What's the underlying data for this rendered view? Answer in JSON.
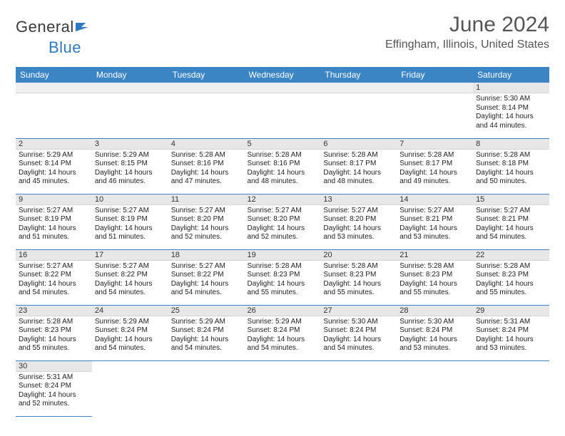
{
  "logo": {
    "prefix": "General",
    "suffix": "Blue"
  },
  "title": "June 2024",
  "location": "Effingham, Illinois, United States",
  "weekdays": [
    "Sunday",
    "Monday",
    "Tuesday",
    "Wednesday",
    "Thursday",
    "Friday",
    "Saturday"
  ],
  "colors": {
    "header_bg": "#3b85c5",
    "header_fg": "#ffffff",
    "daynum_bg": "#e7e7e7",
    "row_border": "#3b85c5"
  },
  "weeks": [
    [
      {
        "n": "",
        "sr": "",
        "ss": "",
        "dl": ""
      },
      {
        "n": "",
        "sr": "",
        "ss": "",
        "dl": ""
      },
      {
        "n": "",
        "sr": "",
        "ss": "",
        "dl": ""
      },
      {
        "n": "",
        "sr": "",
        "ss": "",
        "dl": ""
      },
      {
        "n": "",
        "sr": "",
        "ss": "",
        "dl": ""
      },
      {
        "n": "",
        "sr": "",
        "ss": "",
        "dl": ""
      },
      {
        "n": "1",
        "sr": "Sunrise: 5:30 AM",
        "ss": "Sunset: 8:14 PM",
        "dl": "Daylight: 14 hours and 44 minutes."
      }
    ],
    [
      {
        "n": "2",
        "sr": "Sunrise: 5:29 AM",
        "ss": "Sunset: 8:14 PM",
        "dl": "Daylight: 14 hours and 45 minutes."
      },
      {
        "n": "3",
        "sr": "Sunrise: 5:29 AM",
        "ss": "Sunset: 8:15 PM",
        "dl": "Daylight: 14 hours and 46 minutes."
      },
      {
        "n": "4",
        "sr": "Sunrise: 5:28 AM",
        "ss": "Sunset: 8:16 PM",
        "dl": "Daylight: 14 hours and 47 minutes."
      },
      {
        "n": "5",
        "sr": "Sunrise: 5:28 AM",
        "ss": "Sunset: 8:16 PM",
        "dl": "Daylight: 14 hours and 48 minutes."
      },
      {
        "n": "6",
        "sr": "Sunrise: 5:28 AM",
        "ss": "Sunset: 8:17 PM",
        "dl": "Daylight: 14 hours and 48 minutes."
      },
      {
        "n": "7",
        "sr": "Sunrise: 5:28 AM",
        "ss": "Sunset: 8:17 PM",
        "dl": "Daylight: 14 hours and 49 minutes."
      },
      {
        "n": "8",
        "sr": "Sunrise: 5:28 AM",
        "ss": "Sunset: 8:18 PM",
        "dl": "Daylight: 14 hours and 50 minutes."
      }
    ],
    [
      {
        "n": "9",
        "sr": "Sunrise: 5:27 AM",
        "ss": "Sunset: 8:19 PM",
        "dl": "Daylight: 14 hours and 51 minutes."
      },
      {
        "n": "10",
        "sr": "Sunrise: 5:27 AM",
        "ss": "Sunset: 8:19 PM",
        "dl": "Daylight: 14 hours and 51 minutes."
      },
      {
        "n": "11",
        "sr": "Sunrise: 5:27 AM",
        "ss": "Sunset: 8:20 PM",
        "dl": "Daylight: 14 hours and 52 minutes."
      },
      {
        "n": "12",
        "sr": "Sunrise: 5:27 AM",
        "ss": "Sunset: 8:20 PM",
        "dl": "Daylight: 14 hours and 52 minutes."
      },
      {
        "n": "13",
        "sr": "Sunrise: 5:27 AM",
        "ss": "Sunset: 8:20 PM",
        "dl": "Daylight: 14 hours and 53 minutes."
      },
      {
        "n": "14",
        "sr": "Sunrise: 5:27 AM",
        "ss": "Sunset: 8:21 PM",
        "dl": "Daylight: 14 hours and 53 minutes."
      },
      {
        "n": "15",
        "sr": "Sunrise: 5:27 AM",
        "ss": "Sunset: 8:21 PM",
        "dl": "Daylight: 14 hours and 54 minutes."
      }
    ],
    [
      {
        "n": "16",
        "sr": "Sunrise: 5:27 AM",
        "ss": "Sunset: 8:22 PM",
        "dl": "Daylight: 14 hours and 54 minutes."
      },
      {
        "n": "17",
        "sr": "Sunrise: 5:27 AM",
        "ss": "Sunset: 8:22 PM",
        "dl": "Daylight: 14 hours and 54 minutes."
      },
      {
        "n": "18",
        "sr": "Sunrise: 5:27 AM",
        "ss": "Sunset: 8:22 PM",
        "dl": "Daylight: 14 hours and 54 minutes."
      },
      {
        "n": "19",
        "sr": "Sunrise: 5:28 AM",
        "ss": "Sunset: 8:23 PM",
        "dl": "Daylight: 14 hours and 55 minutes."
      },
      {
        "n": "20",
        "sr": "Sunrise: 5:28 AM",
        "ss": "Sunset: 8:23 PM",
        "dl": "Daylight: 14 hours and 55 minutes."
      },
      {
        "n": "21",
        "sr": "Sunrise: 5:28 AM",
        "ss": "Sunset: 8:23 PM",
        "dl": "Daylight: 14 hours and 55 minutes."
      },
      {
        "n": "22",
        "sr": "Sunrise: 5:28 AM",
        "ss": "Sunset: 8:23 PM",
        "dl": "Daylight: 14 hours and 55 minutes."
      }
    ],
    [
      {
        "n": "23",
        "sr": "Sunrise: 5:28 AM",
        "ss": "Sunset: 8:23 PM",
        "dl": "Daylight: 14 hours and 55 minutes."
      },
      {
        "n": "24",
        "sr": "Sunrise: 5:29 AM",
        "ss": "Sunset: 8:24 PM",
        "dl": "Daylight: 14 hours and 54 minutes."
      },
      {
        "n": "25",
        "sr": "Sunrise: 5:29 AM",
        "ss": "Sunset: 8:24 PM",
        "dl": "Daylight: 14 hours and 54 minutes."
      },
      {
        "n": "26",
        "sr": "Sunrise: 5:29 AM",
        "ss": "Sunset: 8:24 PM",
        "dl": "Daylight: 14 hours and 54 minutes."
      },
      {
        "n": "27",
        "sr": "Sunrise: 5:30 AM",
        "ss": "Sunset: 8:24 PM",
        "dl": "Daylight: 14 hours and 54 minutes."
      },
      {
        "n": "28",
        "sr": "Sunrise: 5:30 AM",
        "ss": "Sunset: 8:24 PM",
        "dl": "Daylight: 14 hours and 53 minutes."
      },
      {
        "n": "29",
        "sr": "Sunrise: 5:31 AM",
        "ss": "Sunset: 8:24 PM",
        "dl": "Daylight: 14 hours and 53 minutes."
      }
    ],
    [
      {
        "n": "30",
        "sr": "Sunrise: 5:31 AM",
        "ss": "Sunset: 8:24 PM",
        "dl": "Daylight: 14 hours and 52 minutes."
      },
      {
        "n": "",
        "sr": "",
        "ss": "",
        "dl": ""
      },
      {
        "n": "",
        "sr": "",
        "ss": "",
        "dl": ""
      },
      {
        "n": "",
        "sr": "",
        "ss": "",
        "dl": ""
      },
      {
        "n": "",
        "sr": "",
        "ss": "",
        "dl": ""
      },
      {
        "n": "",
        "sr": "",
        "ss": "",
        "dl": ""
      },
      {
        "n": "",
        "sr": "",
        "ss": "",
        "dl": ""
      }
    ]
  ]
}
